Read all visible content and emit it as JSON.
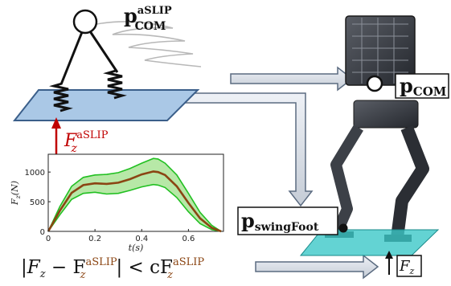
{
  "model": {
    "com_label": {
      "base": "p",
      "sub": "COM",
      "sup": "aSLIP"
    },
    "force_label": {
      "base": "F",
      "sub": "z",
      "sup": "aSLIP"
    }
  },
  "robot": {
    "com_label": {
      "base": "p",
      "sub": "COM"
    },
    "swing_label": {
      "base": "p",
      "sub": "swingFoot"
    },
    "force_label": {
      "base": "F",
      "sub": "z"
    }
  },
  "constraint": {
    "lhs_open": "|F",
    "lhs_sub": "z",
    "minus": " − F",
    "sub2": "z",
    "sup2": "aSLIP",
    "rhs": "| < cF",
    "sub3": "z",
    "sup3": "aSLIP"
  },
  "chart_data": {
    "type": "area",
    "xlabel": "t(s)",
    "ylabel": "F_z(N)",
    "xlim": [
      0,
      0.75
    ],
    "ylim": [
      0,
      1300
    ],
    "x_ticks": [
      "0",
      "0.2",
      "0.4",
      "0.6"
    ],
    "y_ticks": [
      "0",
      "500",
      "1000"
    ],
    "x": [
      0,
      0.05,
      0.1,
      0.15,
      0.2,
      0.25,
      0.3,
      0.35,
      0.4,
      0.45,
      0.47,
      0.5,
      0.55,
      0.6,
      0.65,
      0.7,
      0.74
    ],
    "series": [
      {
        "role": "mean",
        "values": [
          0,
          350,
          650,
          780,
          810,
          800,
          820,
          880,
          960,
          1010,
          1000,
          950,
          760,
          480,
          220,
          60,
          0
        ]
      },
      {
        "role": "upper",
        "values": [
          0,
          420,
          760,
          910,
          950,
          960,
          990,
          1060,
          1150,
          1230,
          1220,
          1150,
          950,
          640,
          320,
          100,
          0
        ]
      },
      {
        "role": "lower",
        "values": [
          0,
          280,
          540,
          640,
          660,
          630,
          640,
          690,
          750,
          790,
          780,
          740,
          570,
          330,
          130,
          30,
          0
        ]
      }
    ],
    "colors": {
      "mean": "#8b4513",
      "band": "#9fe08a",
      "band_edge": "#22c022"
    },
    "grid": false
  }
}
